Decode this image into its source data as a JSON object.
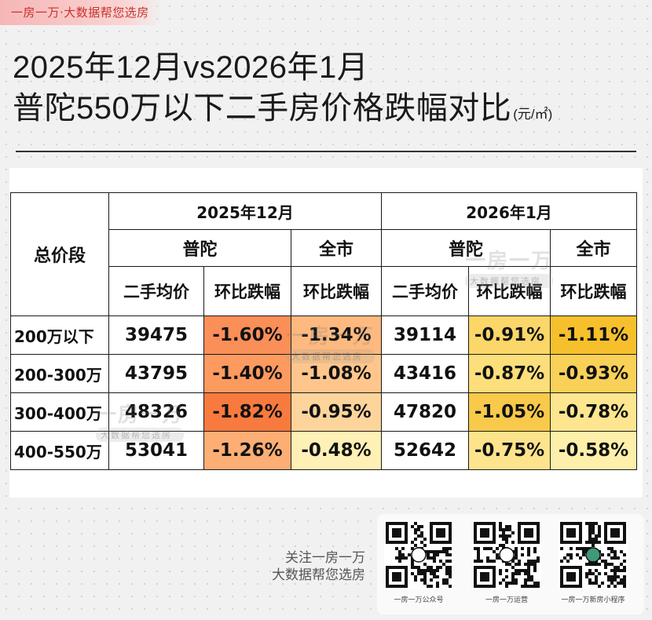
{
  "brand_tag": "一房一万·大数据帮您选房",
  "title": {
    "line1": "2025年12月vs2026年1月",
    "line2": "普陀550万以下二手房价格跌幅对比",
    "unit": "(元/㎡)"
  },
  "table": {
    "segment_header": "总价段",
    "periods": [
      "2025年12月",
      "2026年1月"
    ],
    "regions": [
      "普陀",
      "全市",
      "普陀",
      "全市"
    ],
    "metrics": [
      "二手均价",
      "环比跌幅",
      "环比跌幅",
      "二手均价",
      "环比跌幅",
      "环比跌幅"
    ],
    "rows": [
      {
        "segment": "200万以下",
        "dec_price": "39475",
        "dec_pt_change": "-1.60%",
        "dec_city_change": "-1.34%",
        "jan_price": "39114",
        "jan_pt_change": "-0.91%",
        "jan_city_change": "-1.11%"
      },
      {
        "segment": "200-300万",
        "dec_price": "43795",
        "dec_pt_change": "-1.40%",
        "dec_city_change": "-1.08%",
        "jan_price": "43416",
        "jan_pt_change": "-0.87%",
        "jan_city_change": "-0.93%"
      },
      {
        "segment": "300-400万",
        "dec_price": "48326",
        "dec_pt_change": "-1.82%",
        "dec_city_change": "-0.95%",
        "jan_price": "47820",
        "jan_pt_change": "-1.05%",
        "jan_city_change": "-0.78%"
      },
      {
        "segment": "400-550万",
        "dec_price": "53041",
        "dec_pt_change": "-1.26%",
        "dec_city_change": "-0.48%",
        "jan_price": "52642",
        "jan_pt_change": "-0.75%",
        "jan_city_change": "-0.58%"
      }
    ],
    "cell_colors": {
      "dec_pt_change": [
        "#fb8f58",
        "#fc9a60",
        "#f97a3e",
        "#fcae74"
      ],
      "dec_city_change": [
        "#fdb97f",
        "#fec68c",
        "#fdd49b",
        "#fff0b5"
      ],
      "jan_pt_change": [
        "#fbd669",
        "#fcde7a",
        "#f8c94a",
        "#fde48c"
      ],
      "jan_city_change": [
        "#f6c02c",
        "#f9d058",
        "#fde68f",
        "#fef0aa"
      ]
    }
  },
  "watermark": {
    "main": "一房一万",
    "sub": "大数据帮您选房"
  },
  "footer": {
    "follow_line1": "关注一房一万",
    "follow_line2": "大数据帮您选房",
    "qr_labels": [
      "一房一万公众号",
      "一房一万运营",
      "一房一万新房小程序"
    ]
  }
}
